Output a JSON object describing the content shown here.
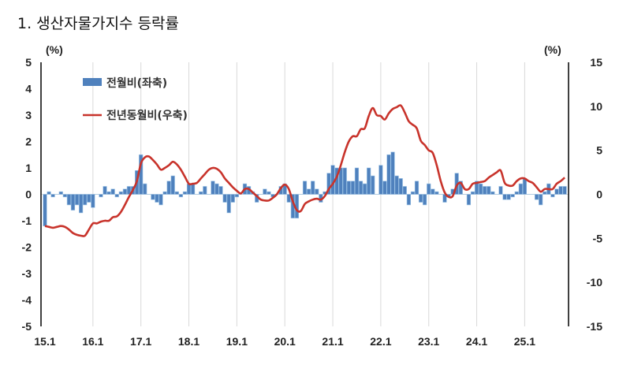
{
  "title": "1. 생산자물가지수 등락률",
  "chart_data": {
    "type": "bar+line",
    "left_unit": "(%)",
    "right_unit": "(%)",
    "left_ylim": [
      -5,
      5
    ],
    "right_ylim": [
      -15,
      15
    ],
    "left_ticks": [
      5,
      4,
      3,
      2,
      1,
      0,
      -1,
      -2,
      -3,
      -4,
      -5
    ],
    "right_ticks": [
      15,
      10,
      5,
      0,
      -5,
      -10,
      -15
    ],
    "x_tick_labels": [
      "15.1",
      "16.1",
      "17.1",
      "18.1",
      "19.1",
      "20.1",
      "21.1",
      "22.1",
      "23.1",
      "24.1",
      "25.1"
    ],
    "grid": "vertical at year ticks",
    "legend_placement": "top-left",
    "colors": {
      "bar": "#4f81bd",
      "bar_edge": "#9cc3e6",
      "line": "#c8332b"
    },
    "series": [
      {
        "name": "전월비(좌축)",
        "type": "bar",
        "axis": "left",
        "values": [
          -1.2,
          0.1,
          -0.1,
          0,
          0.1,
          -0.1,
          -0.4,
          -0.6,
          -0.4,
          -0.7,
          -0.4,
          -0.3,
          -0.5,
          0,
          -0.1,
          0.3,
          0.1,
          0.2,
          -0.1,
          0.1,
          0.2,
          0.3,
          0.3,
          0.9,
          1.5,
          0.4,
          0,
          -0.2,
          -0.3,
          -0.4,
          0.1,
          0.5,
          0.7,
          0.1,
          -0.1,
          0.1,
          0.4,
          0.4,
          0,
          0.1,
          0.3,
          0,
          0.5,
          0.4,
          0.3,
          -0.3,
          -0.7,
          -0.3,
          -0.1,
          0,
          0.4,
          0.3,
          0.1,
          -0.3,
          0,
          0.2,
          0.1,
          -0.1,
          0,
          0.3,
          0.4,
          -0.3,
          -0.9,
          -0.9,
          0,
          0.5,
          0.2,
          0.5,
          0.2,
          -0.3,
          0.1,
          0.8,
          1.1,
          1.0,
          1.0,
          1.0,
          0.5,
          0.5,
          1.0,
          0.5,
          0.4,
          1.0,
          0.7,
          0,
          1.1,
          0.5,
          1.5,
          1.6,
          0.7,
          0.6,
          0.3,
          -0.4,
          0.1,
          0.5,
          -0.3,
          -0.4,
          0.4,
          0.2,
          0.1,
          0,
          -0.3,
          -0.1,
          0.2,
          0.8,
          0.5,
          0,
          -0.4,
          0.1,
          0.5,
          0.4,
          0.3,
          0.3,
          0.1,
          0,
          0.3,
          -0.2,
          -0.2,
          -0.1,
          0.1,
          0.4,
          0.6,
          0,
          0,
          -0.2,
          -0.4,
          0.1,
          0.4,
          -0.1,
          0.2,
          0.3,
          0.3
        ]
      },
      {
        "name": "전년동월비(우축)",
        "type": "line",
        "axis": "right",
        "values": [
          -3.6,
          -3.7,
          -3.8,
          -3.7,
          -3.6,
          -3.7,
          -4.0,
          -4.4,
          -4.6,
          -4.7,
          -4.7,
          -4.0,
          -3.3,
          -3.3,
          -3.1,
          -3.0,
          -3.0,
          -2.6,
          -2.5,
          -2.0,
          -1.2,
          -0.3,
          0.5,
          1.5,
          3.5,
          4.2,
          4.3,
          3.9,
          3.4,
          2.8,
          3.0,
          3.3,
          3.7,
          3.4,
          2.8,
          2.0,
          1.2,
          1.2,
          1.3,
          1.8,
          2.3,
          2.8,
          3.0,
          2.9,
          2.5,
          1.8,
          1.3,
          0.8,
          0.4,
          0.1,
          0.6,
          0.6,
          0.2,
          -0.2,
          -0.6,
          -0.7,
          -0.7,
          -0.4,
          0.0,
          0.7,
          1.1,
          0.6,
          -0.8,
          -1.8,
          -1.9,
          -1.1,
          -0.8,
          -0.6,
          -0.5,
          -0.6,
          -0.2,
          0.6,
          1.2,
          2.0,
          3.3,
          4.8,
          6.0,
          6.6,
          6.6,
          7.4,
          7.5,
          8.9,
          9.8,
          9.0,
          8.9,
          8.5,
          9.2,
          9.7,
          9.9,
          10.1,
          9.3,
          8.3,
          7.9,
          7.5,
          6.1,
          5.6,
          5.0,
          4.7,
          3.3,
          1.5,
          0.2,
          -0.3,
          -0.2,
          1.0,
          1.3,
          0.6,
          0.6,
          1.2,
          1.3,
          1.4,
          1.5,
          1.9,
          2.2,
          2.5,
          2.7,
          1.3,
          1.0,
          1.0,
          1.5,
          1.8,
          1.8,
          1.5,
          1.3,
          0.8,
          0.3,
          0.6,
          0.6,
          0.6,
          1.2,
          1.5,
          1.9
        ]
      }
    ]
  }
}
